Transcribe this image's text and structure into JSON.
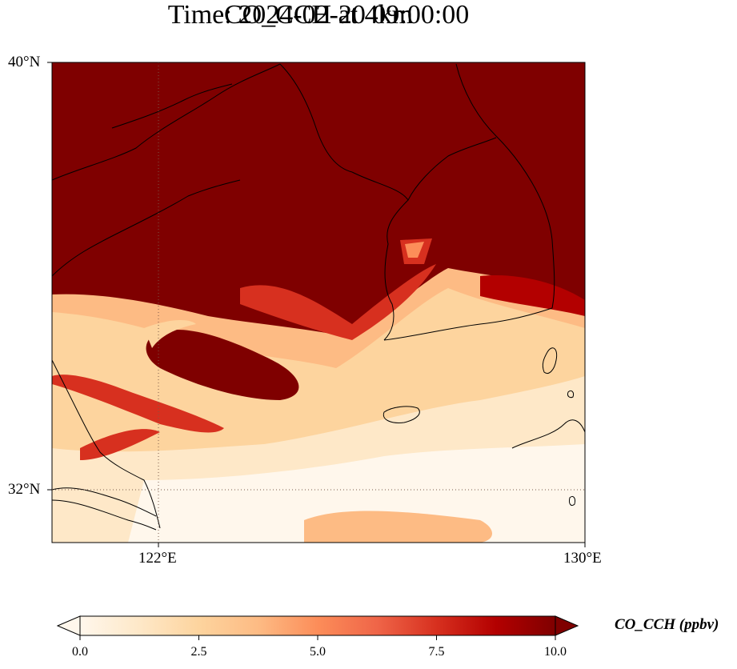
{
  "title": {
    "line1": "CO_CCH at 4km",
    "line2": "Time: 2024-02-20 09:00:00"
  },
  "map": {
    "lon_range": [
      119.5,
      130.0
    ],
    "lat_range": [
      31.0,
      40.0
    ],
    "lat_ticks": [
      {
        "value": 40,
        "label": "40°N"
      },
      {
        "value": 32,
        "label": "32°N"
      }
    ],
    "lon_ticks": [
      {
        "value": 122,
        "label": "122°E"
      },
      {
        "value": 130,
        "label": "130°E"
      }
    ],
    "gridlines": "dotted"
  },
  "colorbar": {
    "label": "CO_CCH (ppbv)",
    "colormap": "OrRd",
    "min": 0.0,
    "max": 10.0,
    "extend": "both",
    "ticks": [
      "0.0",
      "2.5",
      "5.0",
      "7.5",
      "10.0"
    ],
    "colors": [
      "#fff7ec",
      "#fee8c8",
      "#fdd49e",
      "#fdbb84",
      "#fc8d59",
      "#ef6548",
      "#d7301f",
      "#b30000",
      "#7f0000"
    ]
  }
}
